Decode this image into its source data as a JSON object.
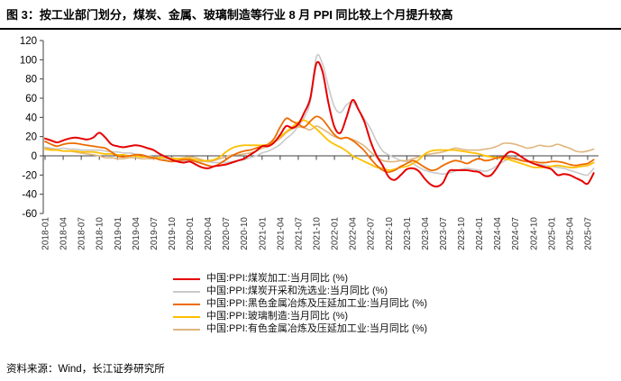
{
  "figure": {
    "title": "图 3：按工业部门划分，煤炭、金属、玻璃制造等行业 8 月 PPI 同比较上个月提升较高",
    "source": "资料来源：Wind，长江证券研究所"
  },
  "chart_data": {
    "type": "line",
    "title": "",
    "xlabel": "",
    "ylabel": "",
    "ylim": [
      -60,
      120
    ],
    "y_ticks": [
      120,
      100,
      80,
      60,
      40,
      20,
      0,
      -20,
      -40,
      -60
    ],
    "grid": false,
    "legend_position": "bottom-left",
    "axis_color": "#404040",
    "x_monthly_start": "2018-01",
    "x_monthly_end": "2025-08",
    "x_tick_labels": [
      "2018-01",
      "2018-04",
      "2018-07",
      "2018-10",
      "2019-01",
      "2019-04",
      "2019-07",
      "2019-10",
      "2020-01",
      "2020-04",
      "2020-07",
      "2020-10",
      "2021-01",
      "2021-04",
      "2021-07",
      "2021-10",
      "2022-01",
      "2022-04",
      "2022-07",
      "2022-10",
      "2023-01",
      "2023-04",
      "2023-07",
      "2023-10",
      "2024-01",
      "2024-04",
      "2024-07",
      "2024-10",
      "2025-01",
      "2025-04",
      "2025-07"
    ],
    "series": [
      {
        "name": "中国:PPI:煤炭开采和洗选业:当月同比 (%)",
        "color": "#c9c9c9",
        "width": 1.6,
        "values": [
          9,
          8,
          7,
          8,
          7,
          7,
          6,
          6,
          6,
          6,
          5,
          4,
          4,
          3,
          3,
          2,
          1,
          0,
          -1,
          -2,
          -3,
          -4,
          -5,
          -5,
          -5,
          -6,
          -6,
          -6,
          -7,
          -7,
          -7,
          -6,
          -5,
          -4,
          -2,
          0,
          3,
          5,
          8,
          12,
          18,
          23,
          31,
          40,
          57,
          103,
          96,
          72,
          51,
          45,
          53,
          56,
          48,
          38,
          28,
          15,
          5,
          1,
          -2,
          -5,
          -6,
          -8,
          -12,
          -15,
          -17,
          -18,
          -19,
          -18,
          -16,
          -14,
          -13,
          -14,
          -15,
          -16,
          -14,
          -10,
          -6,
          -3,
          -2,
          -4,
          -6,
          -8,
          -9,
          -10,
          -11,
          -12,
          -13,
          -15,
          -17,
          -19,
          -20,
          -13
        ]
      },
      {
        "name": "中国:PPI:有色金属冶炼及压延加工业:当月同比 (%)",
        "color": "#dfb67d",
        "width": 1.6,
        "values": [
          8,
          7,
          6,
          5,
          5,
          4,
          3,
          2,
          1,
          0,
          -2,
          -2,
          -3,
          -3,
          -2,
          -2,
          -3,
          -3,
          -3,
          -2,
          -2,
          -2,
          -3,
          -2,
          -1,
          -2,
          -4,
          -6,
          -5,
          -3,
          -1,
          1,
          1,
          2,
          3,
          5,
          8,
          10,
          14,
          18,
          24,
          28,
          30,
          29,
          27,
          31,
          28,
          24,
          20,
          18,
          19,
          17,
          14,
          10,
          4,
          -1,
          -5,
          -6,
          -6,
          -5,
          -5,
          -3,
          -1,
          1,
          2,
          3,
          4,
          6,
          8,
          7,
          6,
          6,
          6,
          7,
          8,
          10,
          13,
          13,
          12,
          10,
          8,
          9,
          11,
          10,
          10,
          12,
          10,
          8,
          5,
          4,
          5,
          7
        ]
      },
      {
        "name": "中国:PPI:玻璃制造:当月同比 (%)",
        "color": "#ffc000",
        "width": 1.8,
        "values": [
          7,
          6,
          6,
          5,
          5,
          5,
          4,
          4,
          4,
          3,
          2,
          2,
          1,
          1,
          0,
          0,
          -1,
          -1,
          -2,
          -2,
          -2,
          -3,
          -3,
          -3,
          -3,
          -4,
          -5,
          -5,
          -4,
          -1,
          4,
          8,
          10,
          11,
          11,
          11,
          11,
          12,
          15,
          20,
          25,
          30,
          35,
          37,
          33,
          28,
          22,
          16,
          12,
          9,
          5,
          0,
          -3,
          -6,
          -9,
          -12,
          -13,
          -15,
          -14,
          -12,
          -11,
          -8,
          -4,
          2,
          5,
          6,
          6,
          6,
          6,
          5,
          4,
          3,
          2,
          0,
          -1,
          -2,
          -3,
          -4,
          -6,
          -8,
          -10,
          -12,
          -12,
          -12,
          -11,
          -10,
          -11,
          -12,
          -12,
          -11,
          -10,
          -7
        ]
      },
      {
        "name": "中国:PPI:黑色金属冶炼及压延加工业:当月同比 (%)",
        "color": "#ed6c00",
        "width": 1.8,
        "values": [
          15,
          12,
          10,
          12,
          13,
          13,
          12,
          11,
          10,
          9,
          8,
          4,
          0,
          -1,
          0,
          1,
          1,
          -1,
          -2,
          -4,
          -5,
          -6,
          -5,
          -4,
          -4,
          -6,
          -8,
          -10,
          -11,
          -8,
          -4,
          0,
          3,
          5,
          6,
          8,
          10,
          12,
          18,
          30,
          39,
          36,
          33,
          30,
          36,
          41,
          38,
          30,
          22,
          18,
          19,
          16,
          11,
          5,
          -3,
          -10,
          -15,
          -17,
          -15,
          -11,
          -8,
          -5,
          -8,
          -12,
          -15,
          -14,
          -10,
          -7,
          -5,
          -6,
          -8,
          -5,
          -3,
          -5,
          -4,
          -2,
          -1,
          -2,
          -3,
          -5,
          -6,
          -6,
          -7,
          -7,
          -6,
          -6,
          -7,
          -9,
          -10,
          -9,
          -8,
          -4
        ]
      },
      {
        "name": "中国:PPI:煤炭加工:当月同比 (%)",
        "color": "#e60000",
        "width": 2,
        "values": [
          18,
          16,
          14,
          16,
          18,
          19,
          18,
          17,
          19,
          24,
          19,
          12,
          10,
          9,
          10,
          11,
          10,
          8,
          6,
          2,
          -1,
          -4,
          -6,
          -7,
          -6,
          -9,
          -12,
          -13,
          -11,
          -10,
          -9,
          -7,
          -5,
          -3,
          1,
          5,
          10,
          10,
          14,
          22,
          31,
          29,
          33,
          45,
          60,
          96,
          88,
          55,
          30,
          24,
          40,
          58,
          48,
          35,
          15,
          0,
          -10,
          -22,
          -25,
          -20,
          -14,
          -13,
          -16,
          -24,
          -30,
          -32,
          -28,
          -16,
          -15,
          -15,
          -15,
          -16,
          -17,
          -21,
          -20,
          -12,
          -2,
          4,
          3,
          -1,
          -5,
          -8,
          -10,
          -12,
          -14,
          -20,
          -19,
          -20,
          -23,
          -26,
          -29,
          -18
        ]
      }
    ],
    "legend_order": [
      4,
      0,
      3,
      2,
      1
    ]
  }
}
